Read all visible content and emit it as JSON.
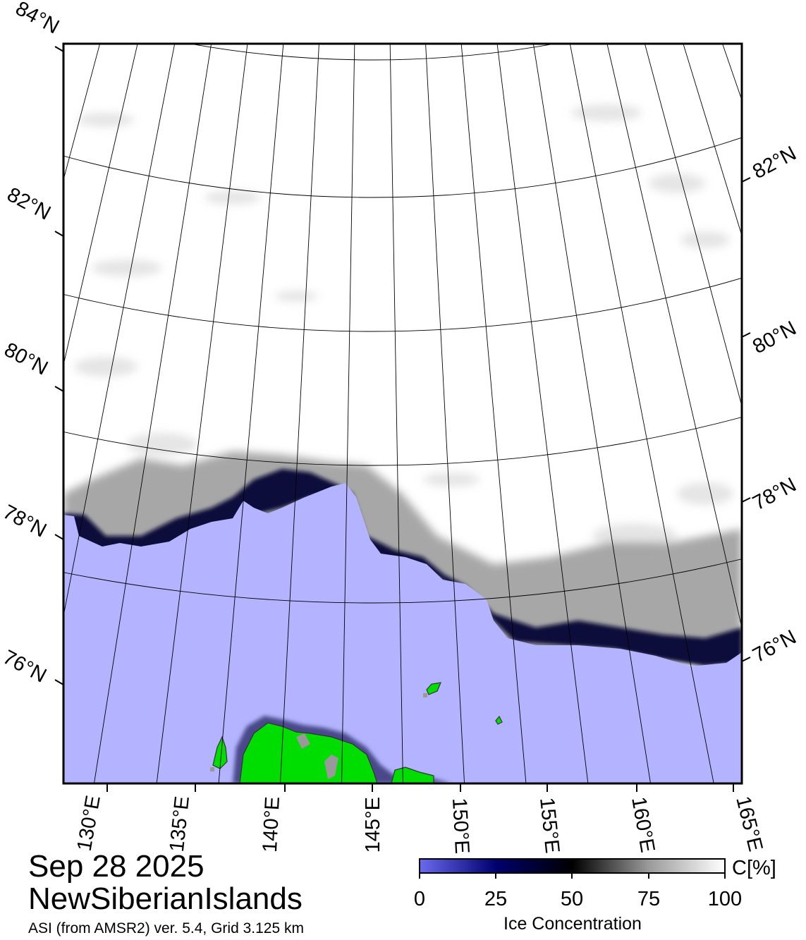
{
  "header": {
    "date": "Sep 28 2025",
    "region": "NewSiberianIslands",
    "product": "ASI (from AMSR2) ver. 5.4,  Grid 3.125 km"
  },
  "map": {
    "latitude_labels_left": [
      "84°N",
      "82°N",
      "80°N",
      "78°N",
      "76°N"
    ],
    "latitude_labels_right": [
      "82°N",
      "80°N",
      "78°N",
      "76°N"
    ],
    "longitude_labels": [
      "130°E",
      "135°E",
      "140°E",
      "145°E",
      "150°E",
      "155°E",
      "160°E",
      "165°E"
    ],
    "colors": {
      "open_water": "#b3b3ff",
      "land": "#00dd00",
      "ice_edge": "#00006e",
      "frame": "#000000"
    }
  },
  "colorbar": {
    "unit_label": "C[%]",
    "title": "Ice Concentration",
    "ticks": [
      "0",
      "25",
      "50",
      "75",
      "100"
    ],
    "gradient": [
      "#6a6af0",
      "#00006e",
      "#000000",
      "#9a9a9a",
      "#ffffff"
    ]
  }
}
